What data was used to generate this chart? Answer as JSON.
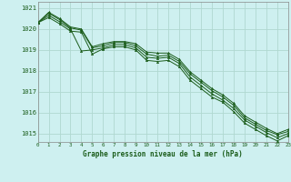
{
  "title": "Graphe pression niveau de la mer (hPa)",
  "bg_color": "#cef0f0",
  "grid_color": "#b0d8d0",
  "line_color": "#1a5c1a",
  "xlim": [
    0,
    23
  ],
  "ylim": [
    1014.6,
    1021.3
  ],
  "yticks": [
    1015,
    1016,
    1017,
    1018,
    1019,
    1020,
    1021
  ],
  "xticks": [
    0,
    1,
    2,
    3,
    4,
    5,
    6,
    7,
    8,
    9,
    10,
    11,
    12,
    13,
    14,
    15,
    16,
    17,
    18,
    19,
    20,
    21,
    22,
    23
  ],
  "series": [
    [
      1020.3,
      1020.8,
      1020.5,
      1020.1,
      1020.0,
      1019.15,
      1019.3,
      1019.4,
      1019.4,
      1019.3,
      1018.9,
      1018.85,
      1018.85,
      1018.55,
      1017.95,
      1017.55,
      1017.15,
      1016.85,
      1016.45,
      1015.85,
      1015.55,
      1015.25,
      1015.0,
      1015.2
    ],
    [
      1020.3,
      1020.75,
      1020.45,
      1020.05,
      1019.95,
      1019.1,
      1019.2,
      1019.35,
      1019.35,
      1019.2,
      1018.8,
      1018.7,
      1018.75,
      1018.45,
      1017.85,
      1017.45,
      1017.05,
      1016.75,
      1016.35,
      1015.75,
      1015.45,
      1015.15,
      1014.95,
      1015.1
    ],
    [
      1020.3,
      1020.65,
      1020.35,
      1020.0,
      1018.95,
      1019.0,
      1019.1,
      1019.25,
      1019.25,
      1019.1,
      1018.65,
      1018.6,
      1018.65,
      1018.35,
      1017.7,
      1017.3,
      1016.9,
      1016.6,
      1016.2,
      1015.65,
      1015.35,
      1015.05,
      1014.8,
      1015.0
    ],
    [
      1020.3,
      1020.55,
      1020.25,
      1019.9,
      1019.85,
      1018.8,
      1019.05,
      1019.15,
      1019.15,
      1019.0,
      1018.5,
      1018.45,
      1018.5,
      1018.2,
      1017.55,
      1017.15,
      1016.75,
      1016.5,
      1016.05,
      1015.5,
      1015.2,
      1014.9,
      1014.65,
      1014.9
    ]
  ]
}
